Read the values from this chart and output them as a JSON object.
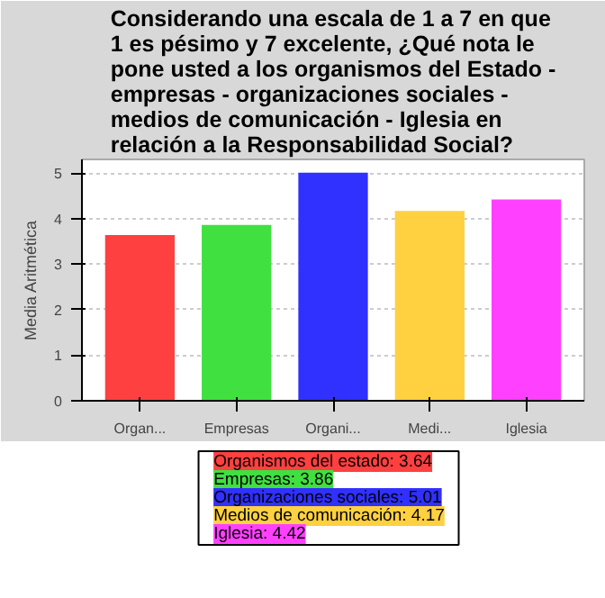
{
  "chart_data": {
    "type": "bar",
    "title": "Considerando una escala de 1 a 7 en que 1 es pésimo y 7 excelente, ¿Qué nota le pone usted a los organismos del Estado - empresas - organizaciones sociales - medios de comunicación - Iglesia en relación a la Responsabilidad Social?",
    "ylabel": "Media Aritmética",
    "categories": [
      "Organ...",
      "Empresas",
      "Organi...",
      "Medi...",
      "Iglesia"
    ],
    "series": [
      {
        "name": "Organismos del estado: 3.64",
        "color": "#ff4040",
        "values": [
          3.64,
          null,
          null,
          null,
          null
        ]
      },
      {
        "name": "Empresas: 3.86",
        "color": "#40e040",
        "values": [
          null,
          3.86,
          null,
          null,
          null
        ]
      },
      {
        "name": "Organizaciones sociales: 5.01",
        "color": "#3030ff",
        "values": [
          null,
          null,
          5.01,
          null,
          null
        ]
      },
      {
        "name": "Medios de comunicación: 4.17",
        "color": "#ffd040",
        "values": [
          null,
          null,
          null,
          4.17,
          null
        ]
      },
      {
        "name": "Iglesia: 4.42",
        "color": "#ff40ff",
        "values": [
          null,
          null,
          null,
          null,
          4.42
        ]
      }
    ],
    "ylim": [
      0,
      5.3
    ],
    "yticks": [
      0,
      1,
      2,
      3,
      4,
      5
    ],
    "grid": "y",
    "legend": "bottom"
  }
}
